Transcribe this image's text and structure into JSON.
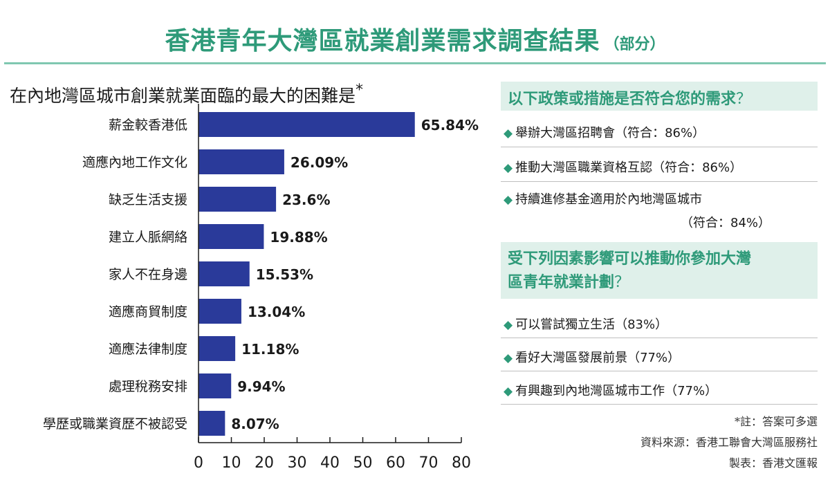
{
  "header": {
    "title": "香港青年大灣區就業創業需求調查結果",
    "subtitle": "（部分）"
  },
  "chart_data": {
    "type": "bar",
    "orientation": "horizontal",
    "title": "在內地灣區城市創業就業面臨的最大的困難是",
    "title_mark": "*",
    "categories": [
      "薪金較香港低",
      "適應內地工作文化",
      "缺乏生活支援",
      "建立人脈網絡",
      "家人不在身邊",
      "適應商貿制度",
      "適應法律制度",
      "處理稅務安排",
      "學歷或職業資歷不被認受"
    ],
    "values": [
      65.84,
      26.09,
      23.6,
      19.88,
      15.53,
      13.04,
      11.18,
      9.94,
      8.07
    ],
    "value_labels": [
      "65.84%",
      "26.09%",
      "23.6%",
      "19.88%",
      "15.53%",
      "13.04%",
      "11.18%",
      "9.94%",
      "8.07%"
    ],
    "xlim": [
      0,
      80
    ],
    "xticks": [
      "0",
      "10",
      "20",
      "30",
      "40",
      "50",
      "60",
      "70",
      "80"
    ],
    "bar_color": "#2a3a9a",
    "grid": false
  },
  "panel1": {
    "header": "以下政策或措施是否符合您的需求",
    "qmark": "？",
    "items": [
      "舉辦大灣區招聘會（符合：86%）",
      "推動大灣區職業資格互認（符合：86%）",
      "持續進修基金適用於內地灣區城市"
    ],
    "item3_cont": "（符合：84%）"
  },
  "panel2": {
    "header_line1": "受下列因素影響可以推動你參加大灣",
    "header_line2": "區青年就業計劃",
    "qmark": "？",
    "items": [
      "可以嘗試獨立生活（83%）",
      "看好大灣區發展前景（77%）",
      "有興趣到內地灣區城市工作（77%）"
    ]
  },
  "footer": {
    "note": "*註：答案可多選",
    "source": "資料來源：香港工聯會大灣區服務社",
    "made_by": "製表：香港文匯報"
  },
  "colors": {
    "accent": "#2e9a79",
    "panel_bg": "#dff0ea",
    "bar": "#2a3a9a"
  }
}
